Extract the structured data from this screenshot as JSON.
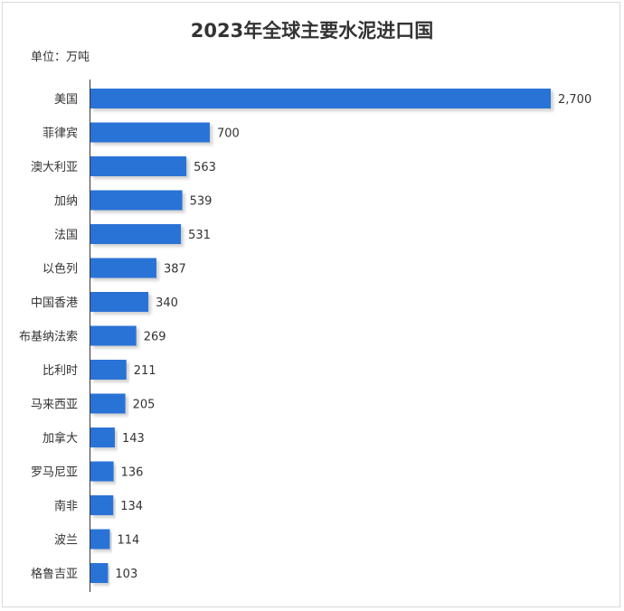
{
  "chart_data": {
    "type": "bar",
    "orientation": "horizontal",
    "title": "2023年全球主要水泥进口国",
    "unit_label": "单位：万吨",
    "categories": [
      "美国",
      "菲律宾",
      "澳大利亚",
      "加纳",
      "法国",
      "以色列",
      "中国香港",
      "布基纳法索",
      "比利时",
      "马来西亚",
      "加拿大",
      "罗马尼亚",
      "南非",
      "波兰",
      "格鲁吉亚"
    ],
    "values": [
      2700,
      700,
      563,
      539,
      531,
      387,
      340,
      269,
      211,
      205,
      143,
      136,
      134,
      114,
      103
    ],
    "value_labels": [
      "2,700",
      "700",
      "563",
      "539",
      "531",
      "387",
      "340",
      "269",
      "211",
      "205",
      "143",
      "136",
      "134",
      "114",
      "103"
    ],
    "bar_color": "#2b73d6",
    "grid": false,
    "legend": "none"
  }
}
